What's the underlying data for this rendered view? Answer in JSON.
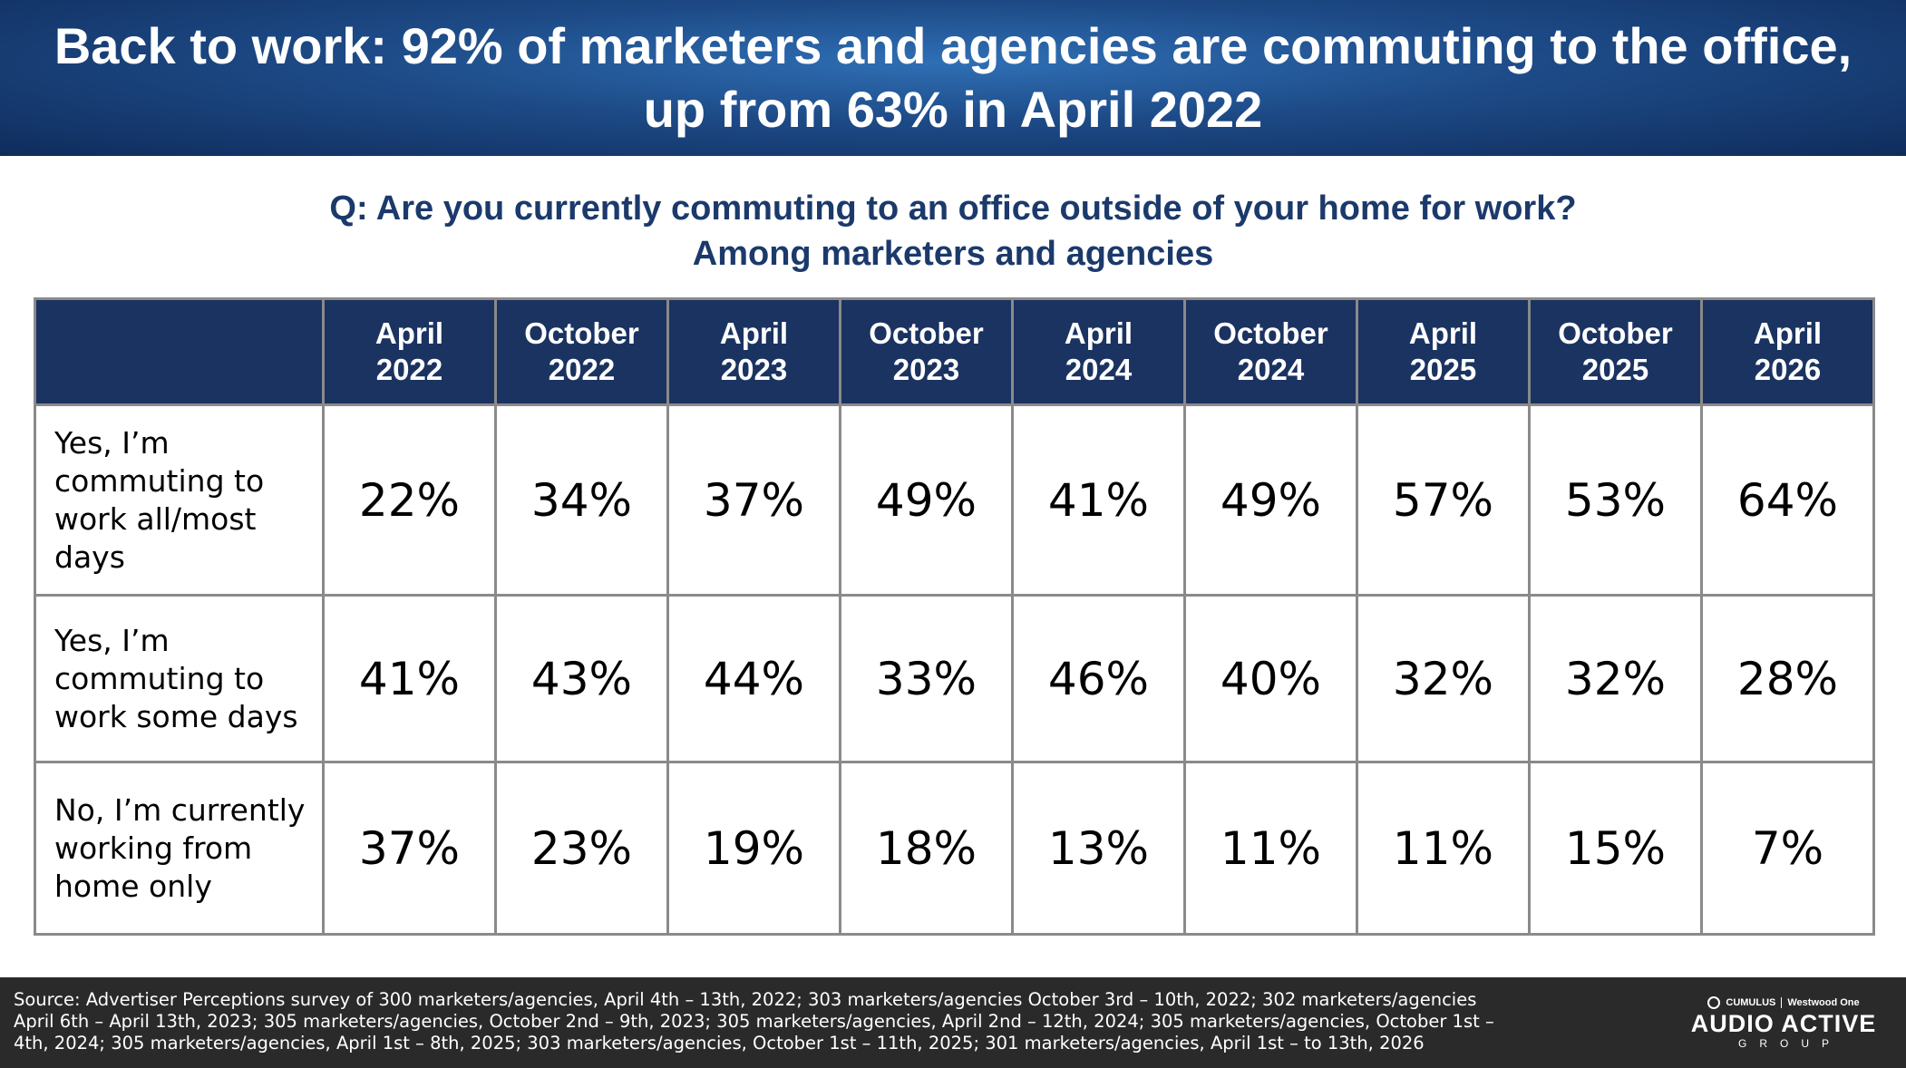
{
  "banner": {
    "title": "Back to work: 92% of marketers and agencies are commuting to the office, up from 63% in April 2022"
  },
  "question": {
    "line1": "Q: Are you currently commuting to an office outside of your home for work?",
    "line2": "Among marketers and agencies"
  },
  "table": {
    "columns": [
      {
        "month": "April",
        "year": "2022"
      },
      {
        "month": "October",
        "year": "2022"
      },
      {
        "month": "April",
        "year": "2023"
      },
      {
        "month": "October",
        "year": "2023"
      },
      {
        "month": "April",
        "year": "2024"
      },
      {
        "month": "October",
        "year": "2024"
      },
      {
        "month": "April",
        "year": "2025"
      },
      {
        "month": "October",
        "year": "2025"
      },
      {
        "month": "April",
        "year": "2026"
      }
    ],
    "rows": [
      {
        "label": "Yes, I’m commuting to work all/most days",
        "values": [
          "22%",
          "34%",
          "37%",
          "49%",
          "41%",
          "49%",
          "57%",
          "53%",
          "64%"
        ]
      },
      {
        "label": "Yes, I’m commuting to work some days",
        "values": [
          "41%",
          "43%",
          "44%",
          "33%",
          "46%",
          "40%",
          "32%",
          "32%",
          "28%"
        ]
      },
      {
        "label": "No, I’m currently working from home only",
        "values": [
          "37%",
          "23%",
          "19%",
          "18%",
          "13%",
          "11%",
          "11%",
          "15%",
          "7%"
        ]
      }
    ]
  },
  "footer": {
    "source": "Source: Advertiser Perceptions survey of 300 marketers/agencies, April 4th – 13th,  2022; 303 marketers/agencies October 3rd – 10th, 2022; 302 marketers/agencies April 6th – April 13th, 2023; 305 marketers/agencies, October 2nd – 9th, 2023; 305 marketers/agencies, April 2nd – 12th, 2024; 305 marketers/agencies, October 1st – 4th, 2024; 305 marketers/agencies, April 1st –  8th, 2025; 303 marketers/agencies, October 1st – 11th, 2025; 301 marketers/agencies, April 1st – to 13th, 2026",
    "logo": {
      "brand1": "CUMULUS",
      "brand2": "Westwood One",
      "main": "AUDIO ACTIVE",
      "sub": "GROUP"
    }
  },
  "colors": {
    "header_bg": "#1b3361",
    "banner_bg": "#1d4a86",
    "question_text": "#1b3a6b",
    "footer_bg": "#2a2a2a",
    "grid": "#8a8a8a"
  }
}
